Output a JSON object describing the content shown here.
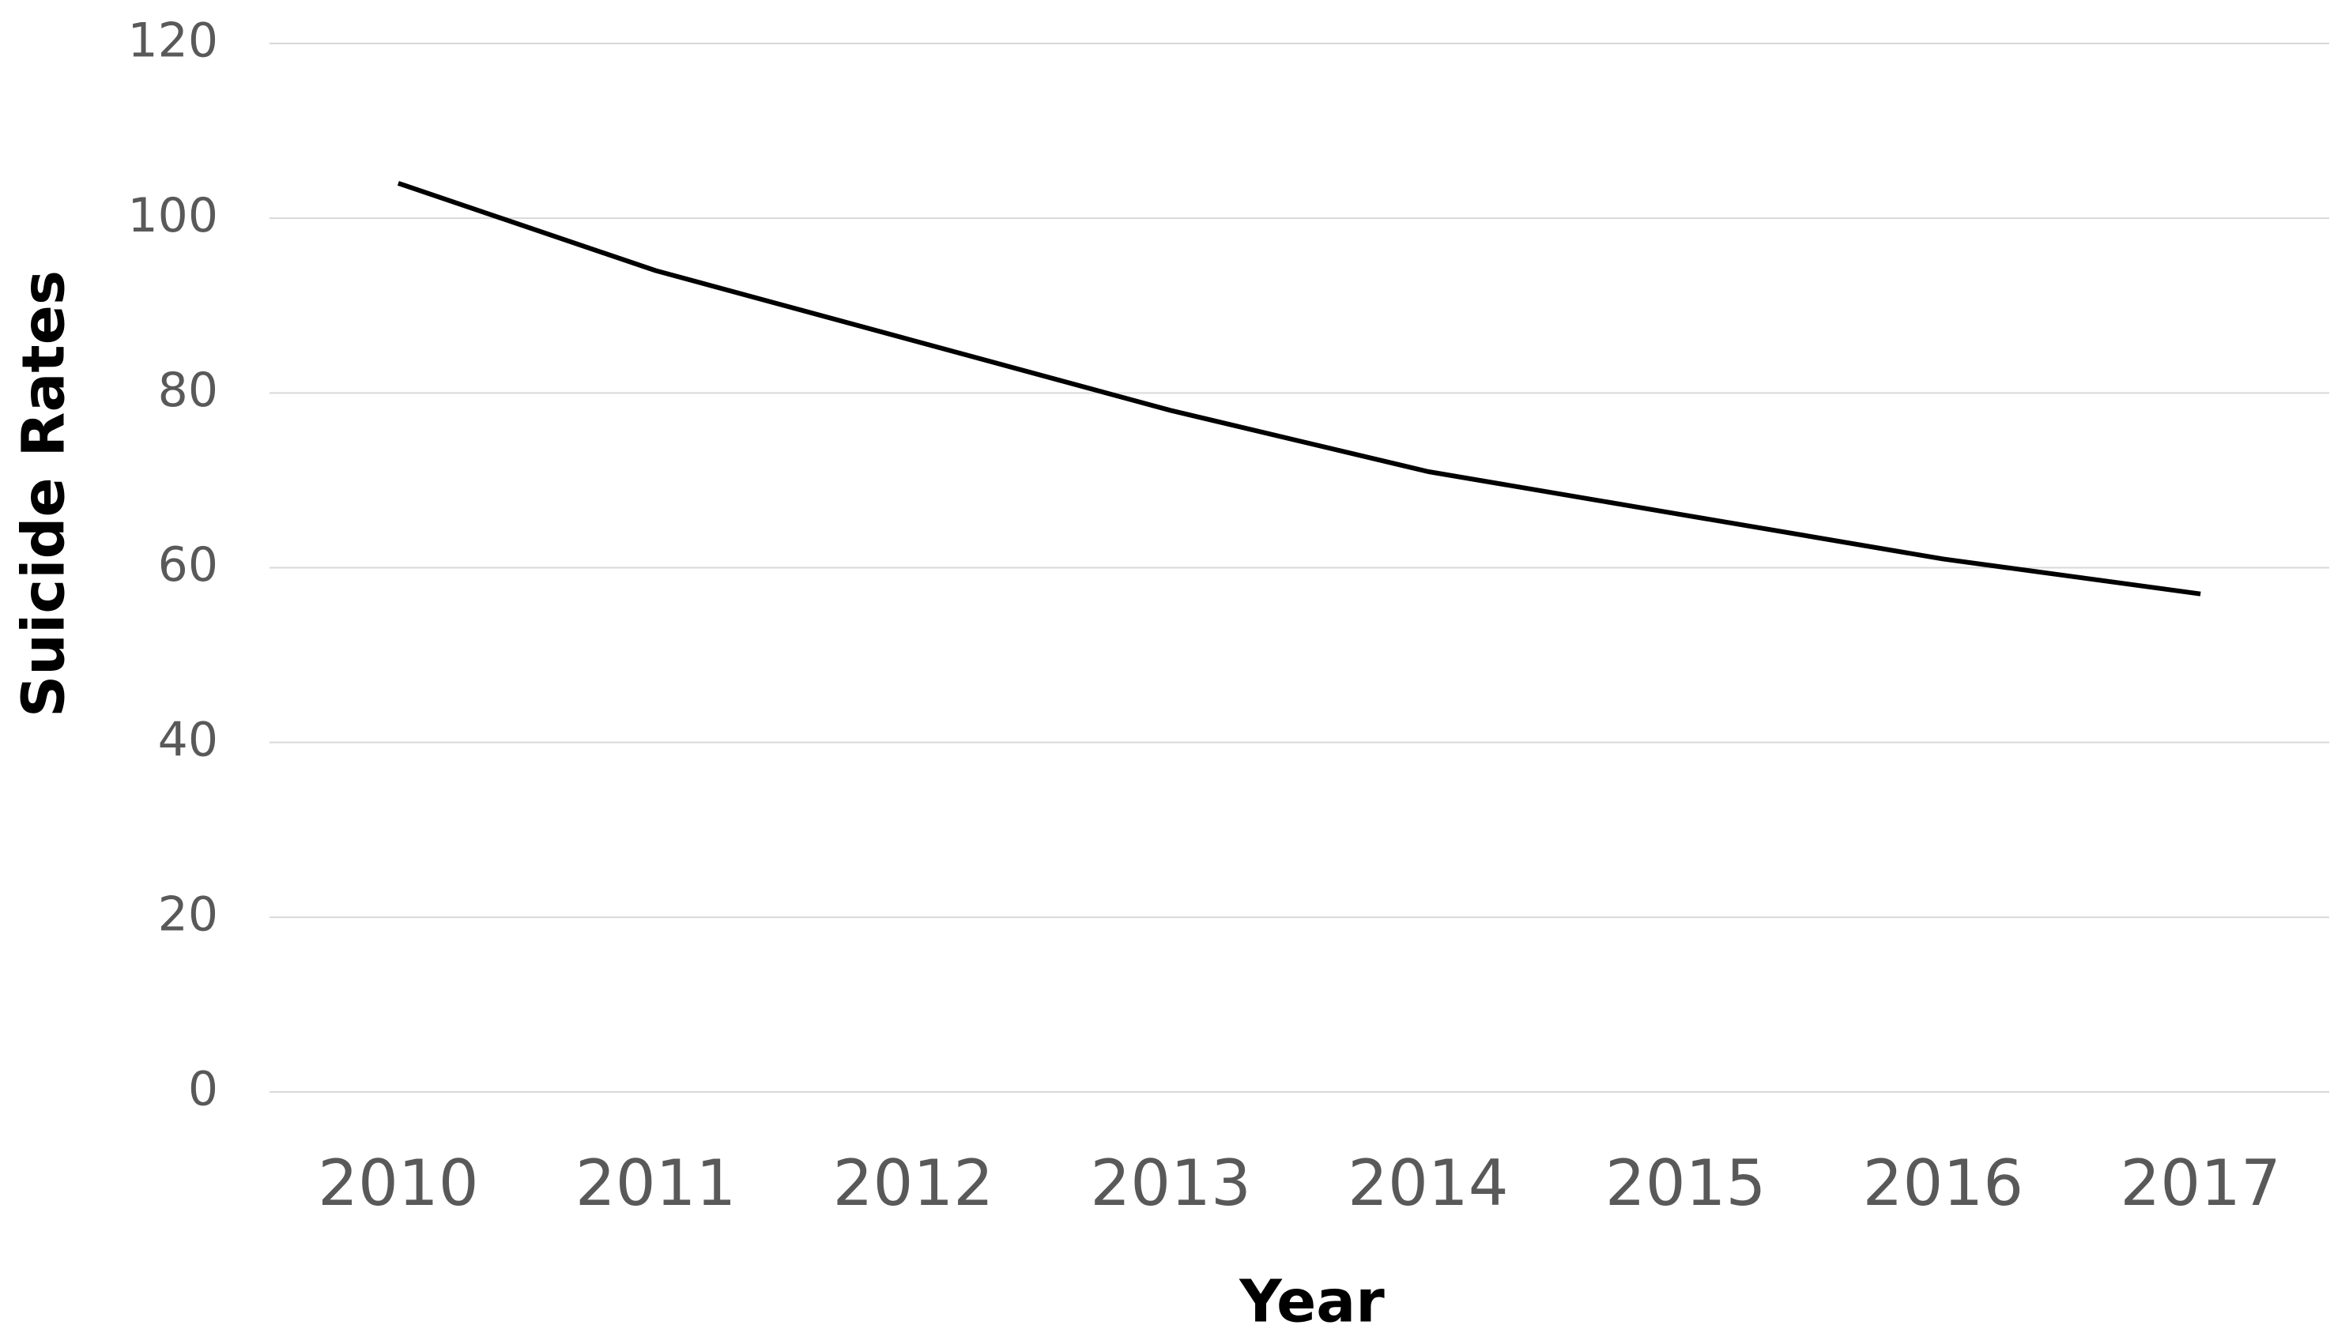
{
  "chart_data": {
    "type": "line",
    "x_label": "Year",
    "y_label": "Suicide Rates",
    "categories": [
      "2010",
      "2011",
      "2012",
      "2013",
      "2014",
      "2015",
      "2016",
      "2017"
    ],
    "series": [
      {
        "color": "#000000",
        "values": [
          104,
          94,
          86,
          78,
          71,
          66,
          61,
          57
        ]
      }
    ],
    "ylim": [
      0,
      120
    ],
    "yticks": [
      0,
      20,
      40,
      60,
      80,
      100,
      120
    ],
    "grid": true
  }
}
